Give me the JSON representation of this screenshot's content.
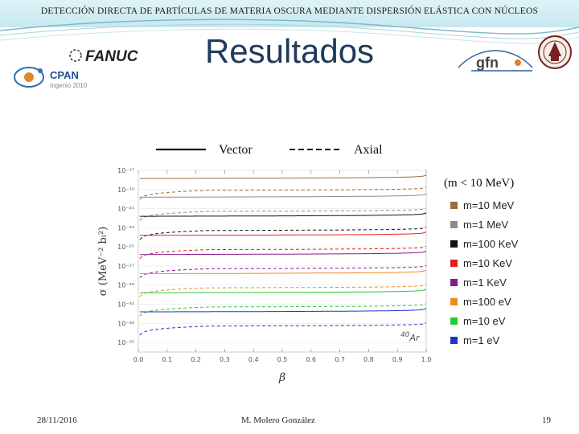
{
  "header": {
    "deck_title": "DETECCIÓN DIRECTA DE PARTÍCULAS DE MATERIA OSCURA MEDIANTE DISPERSIÓN ELÁSTICA CON NÚCLEOS",
    "slide_title": "Resultados"
  },
  "logos": {
    "fanuc": "FANUC",
    "cpan": "CPAN",
    "cpan_sub": "Ingenio 2010",
    "gfn": "gfn"
  },
  "footer": {
    "date": "28/11/2016",
    "author": "M. Molero González",
    "page": "19"
  },
  "chart_data": {
    "type": "line",
    "xlabel": "β",
    "ylabel": "σ (MeV⁻² bₗ²)",
    "x_ticks": [
      "0.0",
      "0.1",
      "0.2",
      "0.3",
      "0.4",
      "0.5",
      "0.6",
      "0.7",
      "0.8",
      "0.9",
      "1.0"
    ],
    "y_ticks": [
      "10⁻¹⁷",
      "10⁻¹⁹",
      "10⁻²¹",
      "10⁻²³",
      "10⁻²⁵",
      "10⁻²⁷",
      "10⁻²⁹",
      "10⁻³¹",
      "10⁻³³",
      "10⁻³⁵"
    ],
    "xlim": [
      0,
      1.0
    ],
    "ylim_log10": [
      -36,
      -17
    ],
    "style_legend": [
      {
        "label": "Vector",
        "dash": "solid"
      },
      {
        "label": "Axial",
        "dash": "dashed"
      }
    ],
    "legend_title": "(m < 10 MeV)",
    "annotation": {
      "sup": "40",
      "text": "Ar"
    },
    "series": [
      {
        "name": "m=10 MeV",
        "color": "#9b6b3a",
        "vector_log10": -17.85,
        "axial_log10": -19.1
      },
      {
        "name": "m=1 MeV",
        "color": "#8c8c8c",
        "vector_log10": -19.8,
        "axial_log10": -21.3
      },
      {
        "name": "m=100 KeV",
        "color": "#111111",
        "vector_log10": -21.8,
        "axial_log10": -23.3
      },
      {
        "name": "m=10 KeV",
        "color": "#e02020",
        "vector_log10": -23.8,
        "axial_log10": -25.3
      },
      {
        "name": "m=1 KeV",
        "color": "#8a1a8a",
        "vector_log10": -25.8,
        "axial_log10": -27.3
      },
      {
        "name": "m=100 eV",
        "color": "#ee8a22",
        "vector_log10": -27.8,
        "axial_log10": -29.3
      },
      {
        "name": "m=10 eV",
        "color": "#22cc33",
        "vector_log10": -29.8,
        "axial_log10": -31.3
      },
      {
        "name": "m=1 eV",
        "color": "#2233cc",
        "vector_log10": -31.8,
        "axial_log10": -33.3
      }
    ]
  }
}
